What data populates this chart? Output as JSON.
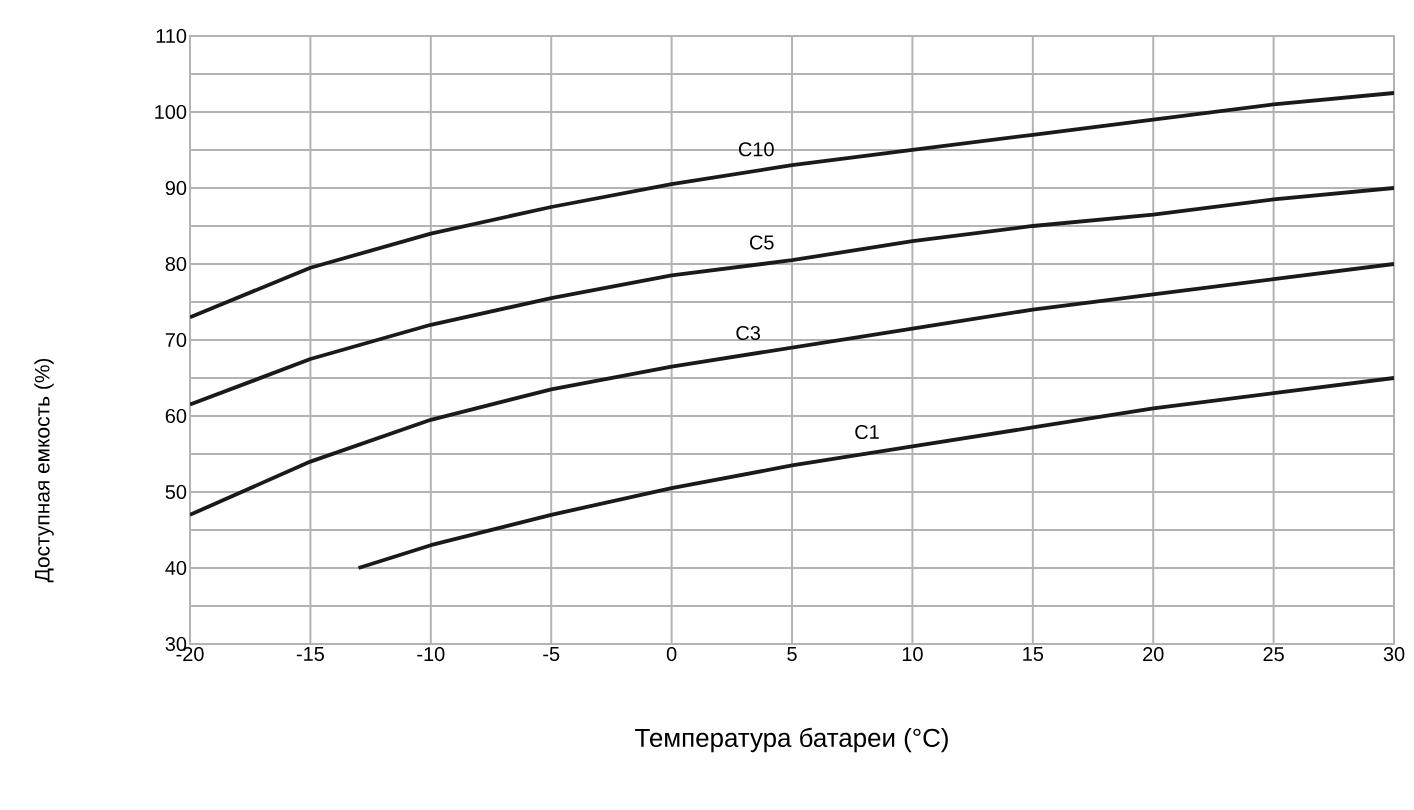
{
  "chart_data": {
    "type": "line",
    "xlabel": "Температура батареи (°C)",
    "ylabel": "Доступная емкость (%)",
    "xlim": [
      -20,
      30
    ],
    "ylim": [
      30,
      110
    ],
    "xticks": [
      -20,
      -15,
      -10,
      -5,
      0,
      5,
      10,
      15,
      20,
      25,
      30
    ],
    "yticks": [
      30,
      {
        "value": 35,
        "label": null
      },
      40,
      {
        "value": 45,
        "label": null
      },
      50,
      {
        "value": 55,
        "label": null
      },
      60,
      {
        "value": 65,
        "label": null
      },
      70,
      {
        "value": 75,
        "label": null
      },
      80,
      {
        "value": 85,
        "label": null
      },
      90,
      {
        "value": 95,
        "label": null
      },
      100,
      {
        "value": 105,
        "label": null
      },
      110
    ],
    "grid": true,
    "legend": false,
    "marker": "none",
    "line_style": "solid",
    "series": [
      {
        "name": "C10",
        "color": "#1a1a1a",
        "x": [
          -20,
          -15,
          -10,
          -5,
          0,
          5,
          10,
          15,
          20,
          25,
          30
        ],
        "values": [
          73,
          79.5,
          84,
          87.5,
          90.5,
          93,
          95,
          97,
          99,
          101,
          102.5
        ]
      },
      {
        "name": "C5",
        "color": "#1a1a1a",
        "x": [
          -20,
          -15,
          -10,
          -5,
          0,
          5,
          10,
          15,
          20,
          25,
          30
        ],
        "values": [
          61.5,
          67.5,
          72,
          75.5,
          78.5,
          80.5,
          83,
          85,
          86.5,
          88.5,
          90
        ]
      },
      {
        "name": "C3",
        "color": "#1a1a1a",
        "x": [
          -20,
          -15,
          -10,
          -5,
          0,
          5,
          10,
          15,
          20,
          25,
          30
        ],
        "values": [
          47,
          54,
          59.5,
          63.5,
          66.5,
          69,
          71.5,
          74,
          76,
          78,
          80
        ]
      },
      {
        "name": "C1",
        "color": "#1a1a1a",
        "x": [
          -13,
          -10,
          -5,
          0,
          5,
          10,
          15,
          20,
          25,
          30
        ],
        "values": [
          40,
          43,
          47,
          50.5,
          53.5,
          56,
          58.5,
          61,
          63,
          65
        ]
      }
    ]
  }
}
